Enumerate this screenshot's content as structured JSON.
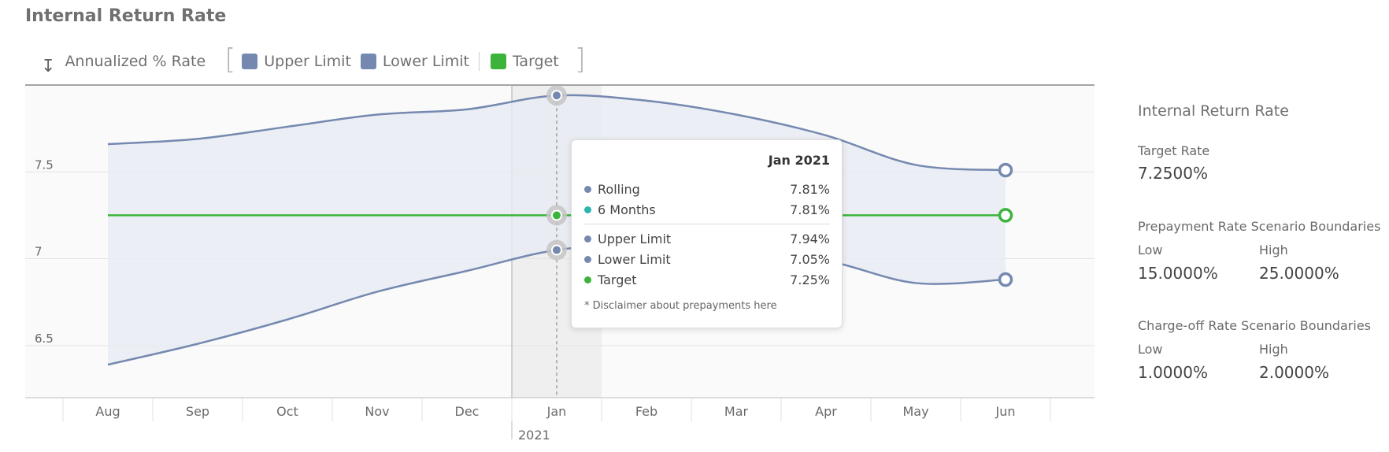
{
  "title": "Internal Return Rate",
  "legend": {
    "label": "Annualized % Rate",
    "items": [
      {
        "name": "Upper Limit",
        "color": "#7589b0"
      },
      {
        "name": "Lower Limit",
        "color": "#7589b0"
      },
      {
        "name": "Target",
        "color": "#3cb43c"
      }
    ]
  },
  "chart_data": {
    "type": "line",
    "title": "Internal Return Rate",
    "ylabel": "Annualized % Rate",
    "categories": [
      "Aug",
      "Sep",
      "Oct",
      "Nov",
      "Dec",
      "Jan",
      "Feb",
      "Mar",
      "Apr",
      "May",
      "Jun"
    ],
    "year_label": "2021",
    "y_ticks": [
      6.5,
      7,
      7.5
    ],
    "ylim": [
      6.2,
      8.0
    ],
    "series": [
      {
        "name": "Upper Limit",
        "color": "#7589b0",
        "values": [
          7.66,
          7.69,
          7.76,
          7.83,
          7.86,
          7.94,
          7.91,
          7.83,
          7.71,
          7.54,
          7.51
        ]
      },
      {
        "name": "Lower Limit",
        "color": "#7589b0",
        "values": [
          6.39,
          6.51,
          6.65,
          6.81,
          6.93,
          7.05,
          7.08,
          7.05,
          6.99,
          6.86,
          6.88
        ]
      },
      {
        "name": "Target",
        "color": "#3cb43c",
        "values": [
          7.25,
          7.25,
          7.25,
          7.25,
          7.25,
          7.25,
          7.25,
          7.25,
          7.25,
          7.25,
          7.25
        ]
      }
    ],
    "highlight_category": "Jan",
    "grid": true
  },
  "tooltip": {
    "header": "Jan 2021",
    "rows_top": [
      {
        "name": "Rolling",
        "value": "7.81%",
        "color": "#7589b0"
      },
      {
        "name": "6 Months",
        "value": "7.81%",
        "color": "#2ab5b0"
      }
    ],
    "rows_bottom": [
      {
        "name": "Upper Limit",
        "value": "7.94%",
        "color": "#7589b0"
      },
      {
        "name": "Lower Limit",
        "value": "7.05%",
        "color": "#7589b0"
      },
      {
        "name": "Target",
        "value": "7.25%",
        "color": "#3cb43c"
      }
    ],
    "disclaimer": "* Disclaimer about prepayments here"
  },
  "side": {
    "title": "Internal Return Rate",
    "target_rate_label": "Target Rate",
    "target_rate_value": "7.2500%",
    "prepayment_title": "Prepayment Rate Scenario Boundaries",
    "prepayment_low_label": "Low",
    "prepayment_low_value": "15.0000%",
    "prepayment_high_label": "High",
    "prepayment_high_value": "25.0000%",
    "chargeoff_title": "Charge-off Rate Scenario Boundaries",
    "chargeoff_low_label": "Low",
    "chargeoff_low_value": "1.0000%",
    "chargeoff_high_label": "High",
    "chargeoff_high_value": "2.0000%"
  }
}
